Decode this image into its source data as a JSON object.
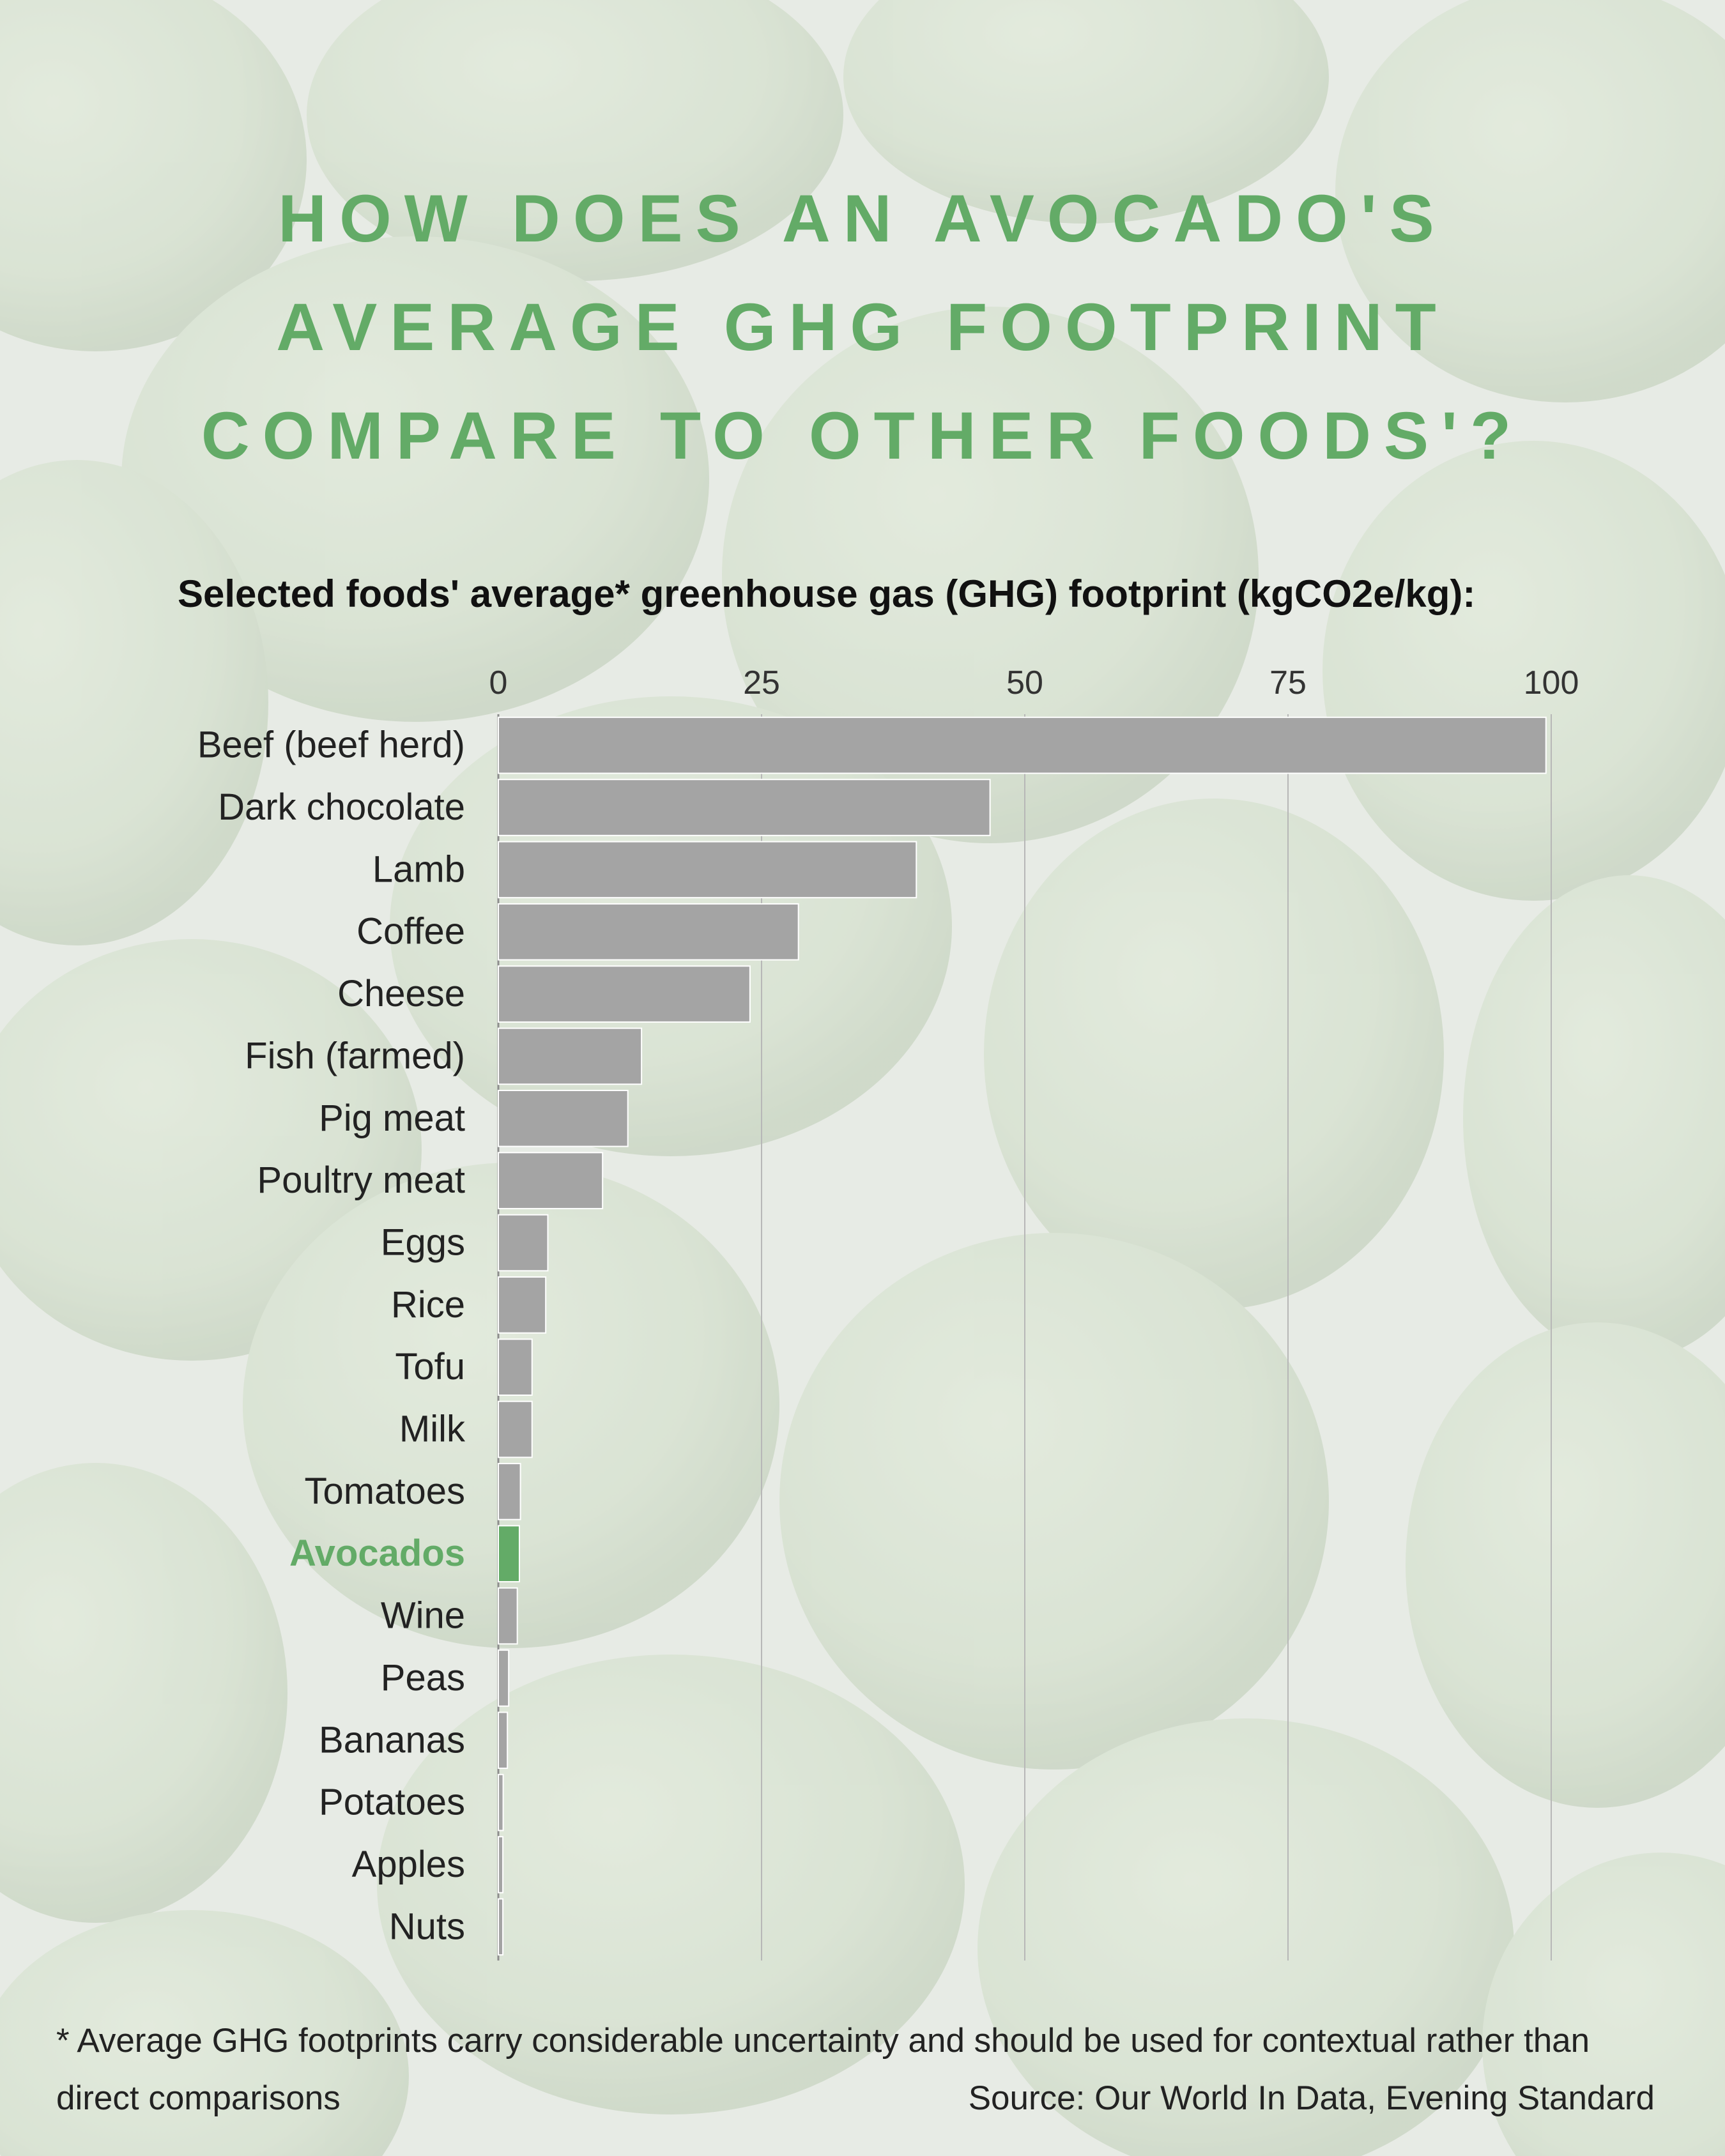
{
  "title_lines": [
    "HOW DOES AN AVOCADO'S",
    "AVERAGE GHG FOOTPRINT",
    "COMPARE TO OTHER FOODS'?"
  ],
  "footnote": "* Average GHG footprints carry considerable uncertainty and should be used for contextual rather than direct comparisons",
  "source": "Source: Our World In Data, Evening Standard",
  "colors": {
    "accent_green": "#63ab67",
    "bar_gray": "#a4a4a4",
    "background": "#e4e8e2"
  },
  "chart_data": {
    "type": "bar",
    "orientation": "horizontal",
    "title": "Selected foods' average* greenhouse gas (GHG) footprint (kgCO2e/kg):",
    "xlim": [
      0,
      100
    ],
    "x_ticks": [
      0,
      25,
      50,
      75,
      100
    ],
    "grid": true,
    "highlight": "Avocados",
    "categories": [
      "Beef (beef herd)",
      "Dark chocolate",
      "Lamb",
      "Coffee",
      "Cheese",
      "Fish (farmed)",
      "Pig meat",
      "Poultry meat",
      "Eggs",
      "Rice",
      "Tofu",
      "Milk",
      "Tomatoes",
      "Avocados",
      "Wine",
      "Peas",
      "Bananas",
      "Potatoes",
      "Apples",
      "Nuts"
    ],
    "values": [
      99.5,
      46.7,
      39.7,
      28.5,
      23.9,
      13.6,
      12.3,
      9.9,
      4.7,
      4.5,
      3.2,
      3.2,
      2.1,
      2.0,
      1.8,
      0.98,
      0.86,
      0.46,
      0.43,
      0.43
    ]
  }
}
